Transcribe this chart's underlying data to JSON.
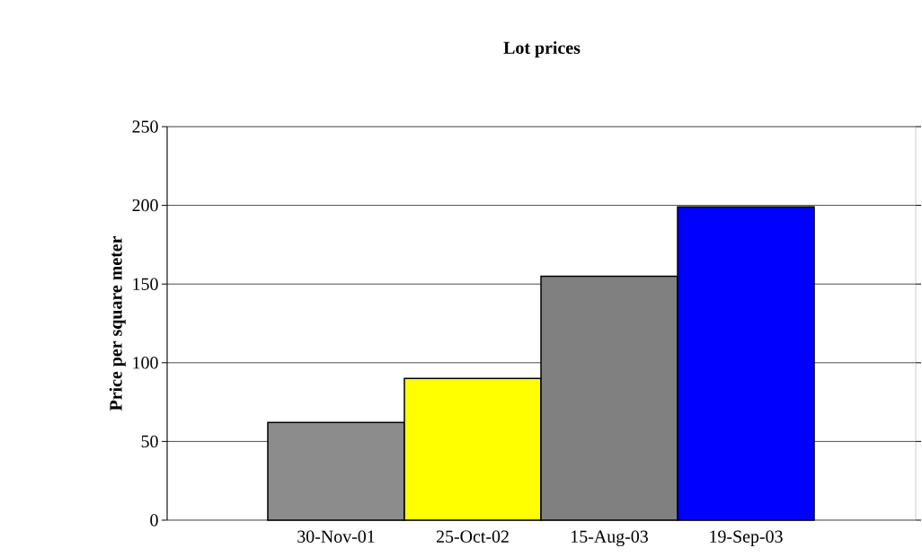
{
  "chart_data": {
    "type": "bar",
    "title": "Lot prices",
    "ylabel": "Price per square meter",
    "categories": [
      "30-Nov-01",
      "25-Oct-02",
      "15-Aug-03",
      "19-Sep-03"
    ],
    "values": [
      62,
      90,
      155,
      199
    ],
    "colors": [
      "#8c8c8c",
      "#ffff00",
      "#808080",
      "#0000ff"
    ],
    "ylim": [
      0,
      250
    ],
    "yticks": [
      0,
      50,
      100,
      150,
      200,
      250
    ],
    "grid": "y"
  }
}
